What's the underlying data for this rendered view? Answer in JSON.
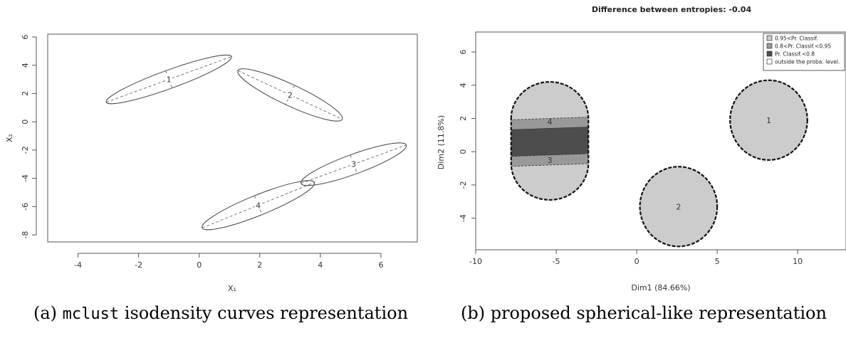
{
  "captions": {
    "a_prefix": "(a) ",
    "a_code": "mclust",
    "a_rest": " isodensity curves representation",
    "b": "(b) proposed spherical-like representation"
  },
  "chart_data": [
    {
      "type": "scatter",
      "name": "mclust isodensity curves",
      "xlabel": "X₁",
      "ylabel": "X₂",
      "xlim": [
        -5,
        7.2
      ],
      "ylim": [
        -8.5,
        6.2
      ],
      "xticks": [
        -4,
        -2,
        0,
        2,
        4,
        6
      ],
      "yticks": [
        -8,
        -6,
        -4,
        -2,
        0,
        2,
        4,
        6
      ],
      "ellipses": [
        {
          "label": "1",
          "cx": -1.0,
          "cy": 3.0,
          "rx": 2.2,
          "ry": 0.65,
          "angle": 20
        },
        {
          "label": "2",
          "cx": 3.0,
          "cy": 1.9,
          "rx": 1.9,
          "ry": 0.75,
          "angle": -25
        },
        {
          "label": "3",
          "cx": 5.1,
          "cy": -3.0,
          "rx": 1.85,
          "ry": 0.7,
          "angle": 20
        },
        {
          "label": "4",
          "cx": 1.95,
          "cy": -5.9,
          "rx": 2.0,
          "ry": 0.72,
          "angle": 22
        }
      ]
    },
    {
      "type": "scatter",
      "title": "Difference between entropies: -0.04",
      "xlabel": "Dim1 (84.66%)",
      "ylabel": "Dim2 (11.8%)",
      "xlim": [
        -10,
        13
      ],
      "ylim": [
        -5.9,
        7.2
      ],
      "xticks": [
        -10,
        -5,
        0,
        5,
        10
      ],
      "yticks": [
        -4,
        -2,
        0,
        2,
        4,
        6
      ],
      "legend": {
        "position": "top-right",
        "entries": [
          {
            "label": "0.95<Pr. Classif.",
            "color": "#cccccc"
          },
          {
            "label": "0.8<Pr. Classif.<0.95",
            "color": "#999999"
          },
          {
            "label": "Pr. Classif.<0.8",
            "color": "#4d4d4d"
          },
          {
            "label": "outside the proba. level.",
            "color": "#ffffff"
          }
        ]
      },
      "circles": [
        {
          "label": "1",
          "cx": 8.2,
          "cy": 1.9,
          "r": 2.4
        },
        {
          "label": "2",
          "cx": 2.6,
          "cy": -3.3,
          "r": 2.4
        }
      ],
      "merged_shape": {
        "labels": [
          "4",
          "3"
        ],
        "label_y": [
          1.8,
          -0.5
        ],
        "x_range": [
          -7.8,
          -3.0
        ],
        "y_top": 4.2,
        "y_bottom": -2.9,
        "bands": [
          {
            "y_from": 1.4,
            "y_to": 2.0,
            "color": "#999999"
          },
          {
            "y_from": -0.2,
            "y_to": 1.4,
            "color": "#4d4d4d"
          },
          {
            "y_from": -0.8,
            "y_to": -0.2,
            "color": "#999999"
          }
        ]
      }
    }
  ]
}
